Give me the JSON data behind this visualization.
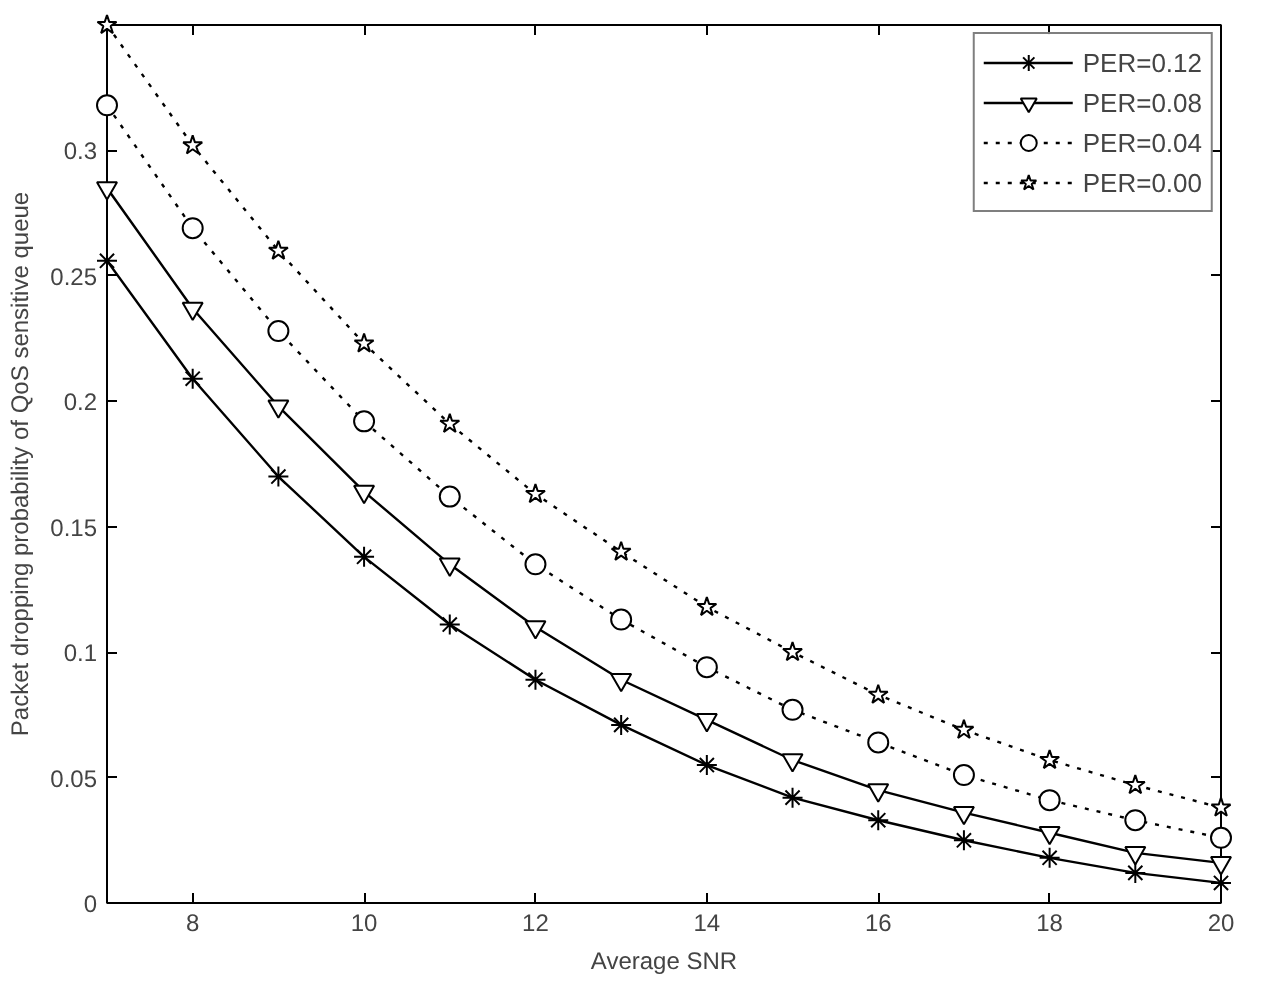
{
  "chart_data": {
    "type": "line",
    "xlabel": "Average SNR",
    "ylabel": "Packet dropping probability of QoS sensitive queue",
    "x": [
      7,
      8,
      9,
      10,
      11,
      12,
      13,
      14,
      15,
      16,
      17,
      18,
      19,
      20
    ],
    "xlim": [
      7,
      20
    ],
    "ylim": [
      0,
      0.35
    ],
    "xticks": [
      8,
      10,
      12,
      14,
      16,
      18,
      20
    ],
    "yticks": [
      0,
      0.05,
      0.1,
      0.15,
      0.2,
      0.25,
      0.3
    ],
    "grid": false,
    "legend": "top right",
    "series": [
      {
        "name": "PER=0.12",
        "color": "#000000",
        "marker": "cross",
        "line_style": "solid",
        "values": [
          0.256,
          0.209,
          0.17,
          0.138,
          0.111,
          0.089,
          0.071,
          0.055,
          0.042,
          0.033,
          0.025,
          0.018,
          0.012,
          0.008
        ]
      },
      {
        "name": "PER=0.08",
        "color": "#000000",
        "marker": "triangle",
        "line_style": "solid",
        "values": [
          0.285,
          0.237,
          0.198,
          0.164,
          0.135,
          0.11,
          0.089,
          0.073,
          0.057,
          0.045,
          0.036,
          0.028,
          0.02,
          0.016
        ]
      },
      {
        "name": "PER=0.04",
        "color": "#000000",
        "marker": "circle",
        "line_style": "dotted",
        "values": [
          0.318,
          0.269,
          0.228,
          0.192,
          0.162,
          0.135,
          0.113,
          0.094,
          0.077,
          0.064,
          0.051,
          0.041,
          0.033,
          0.026
        ]
      },
      {
        "name": "PER=0.00",
        "color": "#000000",
        "marker": "star",
        "line_style": "dotted",
        "values": [
          0.35,
          0.302,
          0.26,
          0.223,
          0.191,
          0.163,
          0.14,
          0.118,
          0.1,
          0.083,
          0.069,
          0.057,
          0.047,
          0.038
        ]
      }
    ]
  }
}
